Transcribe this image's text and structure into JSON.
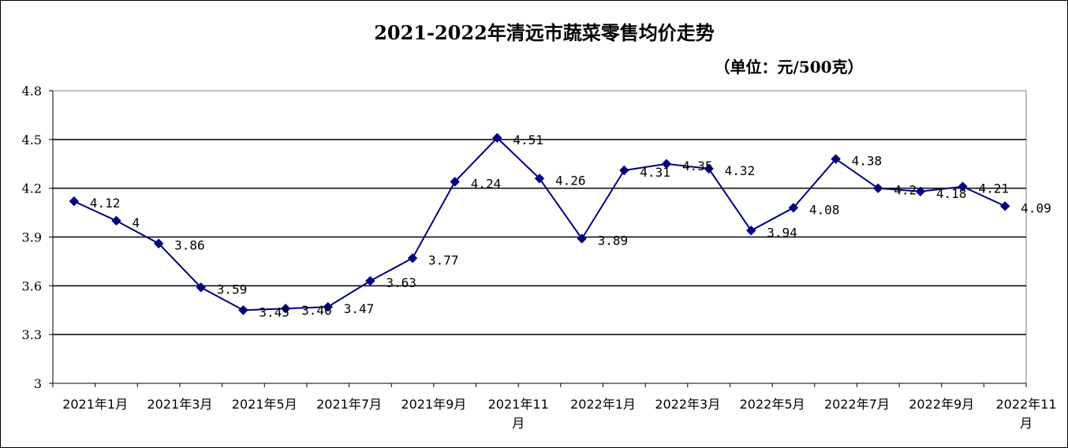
{
  "chart_data": {
    "type": "line",
    "title": "2021-2022年清远市蔬菜零售均价走势",
    "unit_label": "（单位：元/500克）",
    "xlabel": "",
    "ylabel": "",
    "ylim": [
      3,
      4.8
    ],
    "yticks": [
      "3",
      "3.3",
      "3.6",
      "3.9",
      "4.2",
      "4.5",
      "4.8"
    ],
    "grid": true,
    "legend": "none",
    "line_color": "#000080",
    "months": [
      "2021年1月",
      "2021年2月",
      "2021年3月",
      "2021年4月",
      "2021年5月",
      "2021年6月",
      "2021年7月",
      "2021年8月",
      "2021年9月",
      "2021年10月",
      "2021年11月",
      "2021年12月",
      "2022年1月",
      "2022年2月",
      "2022年3月",
      "2022年4月",
      "2022年5月",
      "2022年6月",
      "2022年7月",
      "2022年8月",
      "2022年9月",
      "2022年10月",
      "2022年11月"
    ],
    "xtick_labels": [
      "2021年1月",
      "2021年3月",
      "2021年5月",
      "2021年7月",
      "2021年9月",
      "2021年11月",
      "2022年1月",
      "2022年3月",
      "2022年5月",
      "2022年7月",
      "2022年9月",
      "2022年11月"
    ],
    "values": [
      4.12,
      4,
      3.86,
      3.59,
      3.45,
      3.46,
      3.47,
      3.63,
      3.77,
      4.24,
      4.51,
      4.26,
      3.89,
      4.31,
      4.35,
      4.32,
      3.94,
      4.08,
      4.38,
      4.2,
      4.18,
      4.21,
      4.09
    ],
    "data_labels": [
      "4.12",
      "4",
      "3.86",
      "3.59",
      "3.45",
      "3.46",
      "3.47",
      "3.63",
      "3.77",
      "4.24",
      "4.51",
      "4.26",
      "3.89",
      "4.31",
      "4.35",
      "4.32",
      "3.94",
      "4.08",
      "4.38",
      "4.2",
      "4.18",
      "4.21",
      "4.09"
    ]
  }
}
